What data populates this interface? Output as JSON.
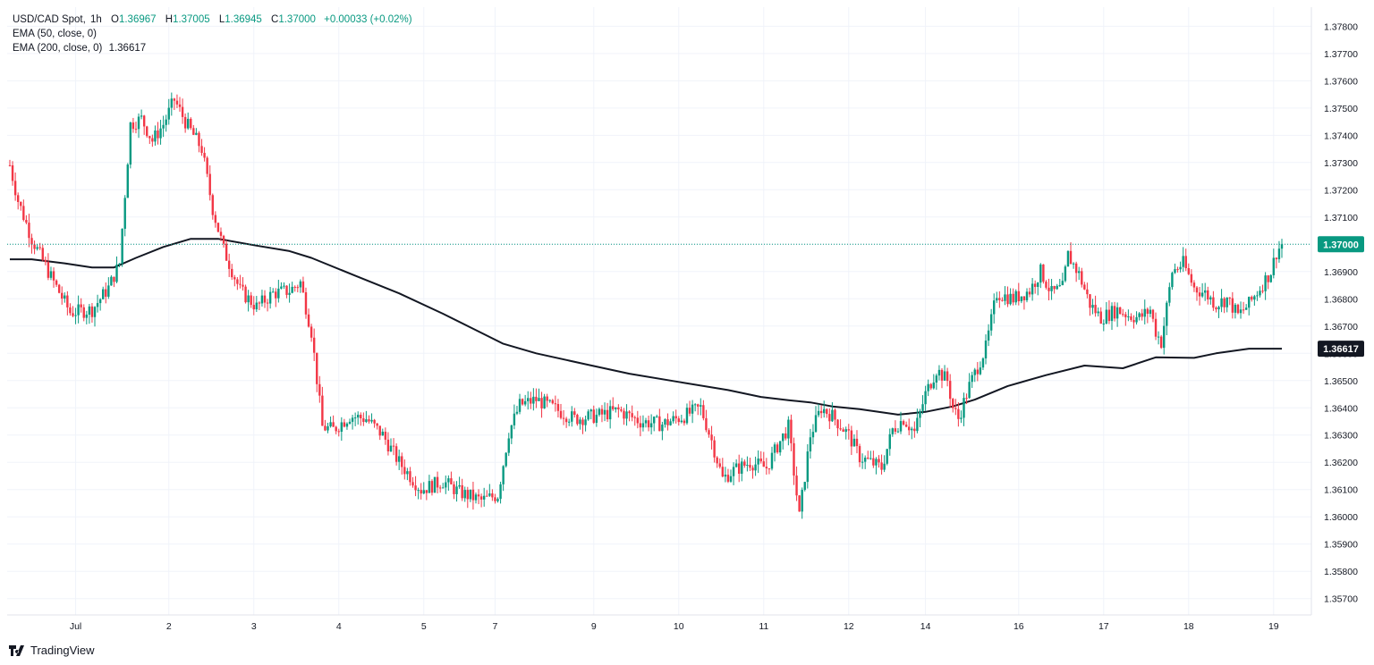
{
  "legend": {
    "symbol": "USD/CAD Spot",
    "interval": "1h",
    "o_label": "O",
    "o_value": "1.36967",
    "h_label": "H",
    "h_value": "1.37005",
    "l_label": "L",
    "l_value": "1.36945",
    "c_label": "C",
    "c_value": "1.37000",
    "change": "+0.00033 (+0.02%)",
    "ema50_label": "EMA (50, close, 0)",
    "ema200_label": "EMA (200, close, 0)",
    "ema200_value": "1.36617"
  },
  "brand": {
    "name": "TradingView",
    "logo_icon": "tradingview-logo-icon"
  },
  "colors": {
    "up": "#089981",
    "down": "#f23645",
    "ema": "#131722",
    "grid": "#f0f3fa",
    "price_tag": "#089981",
    "ema_tag": "#131722"
  },
  "chart_data": {
    "type": "candlestick",
    "title": "USD/CAD Spot, 1h",
    "x_tick_labels": [
      "Jul",
      "2",
      "3",
      "4",
      "5",
      "7",
      "9",
      "10",
      "11",
      "12",
      "14",
      "16",
      "17",
      "18",
      "19"
    ],
    "y_tick_labels": [
      "1.37800",
      "1.37700",
      "1.37600",
      "1.37500",
      "1.37400",
      "1.37300",
      "1.37200",
      "1.37100",
      "1.37000",
      "1.36900",
      "1.36800",
      "1.36700",
      "1.36600",
      "1.36500",
      "1.36400",
      "1.36300",
      "1.36200",
      "1.36100",
      "1.36000",
      "1.35900",
      "1.35800",
      "1.35700"
    ],
    "ylim": [
      1.3564,
      1.3787
    ],
    "last_price": 1.37,
    "last_price_label": "1.37000",
    "ema200_label": "1.36617",
    "grid": true,
    "price_path": [
      [
        0,
        1.3729
      ],
      [
        3,
        1.3716
      ],
      [
        8,
        1.3702
      ],
      [
        15,
        1.3688
      ],
      [
        22,
        1.3675
      ],
      [
        30,
        1.3676
      ],
      [
        36,
        1.3684
      ],
      [
        40,
        1.3693
      ],
      [
        44,
        1.3744
      ],
      [
        48,
        1.3746
      ],
      [
        52,
        1.3738
      ],
      [
        56,
        1.3744
      ],
      [
        60,
        1.3753
      ],
      [
        64,
        1.3745
      ],
      [
        70,
        1.3735
      ],
      [
        74,
        1.3713
      ],
      [
        78,
        1.3698
      ],
      [
        84,
        1.3683
      ],
      [
        90,
        1.3677
      ],
      [
        96,
        1.3682
      ],
      [
        102,
        1.3683
      ],
      [
        106,
        1.3686
      ],
      [
        110,
        1.3668
      ],
      [
        114,
        1.3633
      ],
      [
        118,
        1.3632
      ],
      [
        124,
        1.3637
      ],
      [
        130,
        1.3636
      ],
      [
        136,
        1.363
      ],
      [
        142,
        1.362
      ],
      [
        150,
        1.361
      ],
      [
        158,
        1.3613
      ],
      [
        164,
        1.3609
      ],
      [
        172,
        1.3606
      ],
      [
        178,
        1.3608
      ],
      [
        182,
        1.3631
      ],
      [
        186,
        1.3641
      ],
      [
        192,
        1.3643
      ],
      [
        198,
        1.364
      ],
      [
        206,
        1.3636
      ],
      [
        214,
        1.3637
      ],
      [
        222,
        1.3639
      ],
      [
        230,
        1.3635
      ],
      [
        238,
        1.3634
      ],
      [
        246,
        1.3637
      ],
      [
        252,
        1.364
      ],
      [
        256,
        1.3628
      ],
      [
        260,
        1.3614
      ],
      [
        264,
        1.3617
      ],
      [
        270,
        1.362
      ],
      [
        276,
        1.3618
      ],
      [
        280,
        1.3626
      ],
      [
        284,
        1.3633
      ],
      [
        288,
        1.36
      ],
      [
        292,
        1.363
      ],
      [
        296,
        1.364
      ],
      [
        300,
        1.3637
      ],
      [
        306,
        1.363
      ],
      [
        310,
        1.3622
      ],
      [
        314,
        1.362
      ],
      [
        318,
        1.3618
      ],
      [
        322,
        1.3632
      ],
      [
        326,
        1.3636
      ],
      [
        330,
        1.3631
      ],
      [
        334,
        1.3645
      ],
      [
        338,
        1.3654
      ],
      [
        342,
        1.365
      ],
      [
        344,
        1.364
      ],
      [
        346,
        1.3636
      ],
      [
        350,
        1.3648
      ],
      [
        356,
        1.3662
      ],
      [
        360,
        1.3682
      ],
      [
        366,
        1.368
      ],
      [
        372,
        1.3683
      ],
      [
        376,
        1.369
      ],
      [
        380,
        1.3682
      ],
      [
        384,
        1.3684
      ],
      [
        386,
        1.3696
      ],
      [
        390,
        1.3689
      ],
      [
        394,
        1.3678
      ],
      [
        398,
        1.3673
      ],
      [
        404,
        1.3676
      ],
      [
        408,
        1.3674
      ],
      [
        412,
        1.3673
      ],
      [
        416,
        1.3676
      ],
      [
        418,
        1.3668
      ],
      [
        420,
        1.3664
      ],
      [
        424,
        1.369
      ],
      [
        428,
        1.3693
      ],
      [
        432,
        1.3684
      ],
      [
        436,
        1.3682
      ],
      [
        440,
        1.3678
      ],
      [
        444,
        1.368
      ],
      [
        448,
        1.3674
      ],
      [
        452,
        1.3678
      ],
      [
        456,
        1.3684
      ],
      [
        460,
        1.369
      ],
      [
        462,
        1.3697
      ],
      [
        464,
        1.37
      ]
    ],
    "ema200": [
      [
        0,
        1.36945
      ],
      [
        8,
        1.36945
      ],
      [
        20,
        1.3693
      ],
      [
        30,
        1.36915
      ],
      [
        38,
        1.36915
      ],
      [
        46,
        1.3695
      ],
      [
        56,
        1.3699
      ],
      [
        66,
        1.3702
      ],
      [
        76,
        1.3702
      ],
      [
        90,
        1.36995
      ],
      [
        102,
        1.36975
      ],
      [
        110,
        1.3695
      ],
      [
        126,
        1.36885
      ],
      [
        142,
        1.3682
      ],
      [
        158,
        1.36745
      ],
      [
        172,
        1.36675
      ],
      [
        180,
        1.36635
      ],
      [
        192,
        1.366
      ],
      [
        210,
        1.3656
      ],
      [
        226,
        1.36525
      ],
      [
        244,
        1.36495
      ],
      [
        262,
        1.36465
      ],
      [
        274,
        1.3644
      ],
      [
        284,
        1.36428
      ],
      [
        292,
        1.3642
      ],
      [
        300,
        1.36405
      ],
      [
        310,
        1.36395
      ],
      [
        324,
        1.36375
      ],
      [
        334,
        1.36385
      ],
      [
        344,
        1.36405
      ],
      [
        352,
        1.3643
      ],
      [
        364,
        1.3648
      ],
      [
        378,
        1.3652
      ],
      [
        392,
        1.36555
      ],
      [
        406,
        1.36545
      ],
      [
        418,
        1.36585
      ],
      [
        432,
        1.36583
      ],
      [
        440,
        1.366
      ],
      [
        452,
        1.36617
      ],
      [
        464,
        1.36617
      ]
    ],
    "tick_bar_index": [
      24,
      58,
      89,
      120,
      151,
      177,
      213,
      244,
      275,
      306,
      334,
      368,
      399,
      430,
      461
    ]
  }
}
